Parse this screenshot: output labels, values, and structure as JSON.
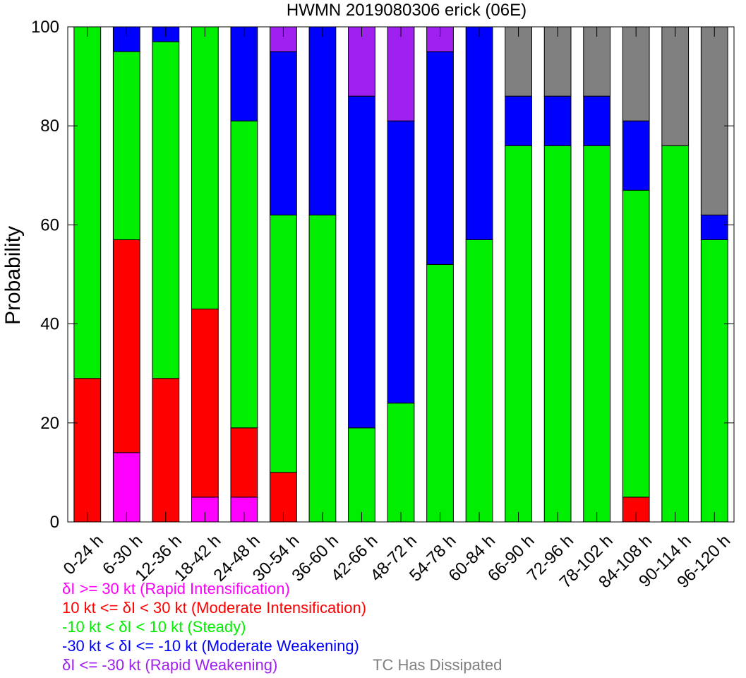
{
  "chart_data": {
    "type": "bar",
    "stacked": true,
    "title": "HWMN 2019080306 erick (06E)",
    "ylabel": "Probability",
    "xlabel": "",
    "ylim": [
      0,
      100
    ],
    "yticks": [
      0,
      20,
      40,
      60,
      80,
      100
    ],
    "grid": false,
    "categories": [
      "0-24 h",
      "6-30 h",
      "12-36 h",
      "18-42 h",
      "24-48 h",
      "30-54 h",
      "36-60 h",
      "42-66 h",
      "48-72 h",
      "54-78 h",
      "60-84 h",
      "66-90 h",
      "72-96 h",
      "78-102 h",
      "84-108 h",
      "90-114 h",
      "96-120 h"
    ],
    "series": [
      {
        "name": "δI >= 30 kt (Rapid Intensification)",
        "color": "#ff00ff",
        "values": [
          0,
          14,
          0,
          5,
          5,
          0,
          0,
          0,
          0,
          0,
          0,
          0,
          0,
          0,
          0,
          0,
          0
        ]
      },
      {
        "name": "10 kt <= δI < 30 kt (Moderate Intensification)",
        "color": "#ff0000",
        "values": [
          29,
          43,
          29,
          38,
          14,
          10,
          0,
          0,
          0,
          0,
          0,
          0,
          0,
          0,
          5,
          0,
          0
        ]
      },
      {
        "name": "-10 kt < δI < 10 kt (Steady)",
        "color": "#00ee00",
        "values": [
          71,
          38,
          68,
          57,
          62,
          52,
          62,
          19,
          24,
          52,
          57,
          76,
          76,
          76,
          62,
          76,
          57
        ]
      },
      {
        "name": "-30 kt < δI <= -10 kt (Moderate Weakening)",
        "color": "#0000ff",
        "values": [
          0,
          5,
          3,
          0,
          19,
          33,
          38,
          67,
          57,
          43,
          43,
          10,
          10,
          10,
          14,
          0,
          5
        ]
      },
      {
        "name": "δI <= -30 kt (Rapid Weakening)",
        "color": "#a020f0",
        "values": [
          0,
          0,
          0,
          0,
          0,
          5,
          0,
          14,
          19,
          5,
          0,
          0,
          0,
          0,
          0,
          0,
          0
        ]
      },
      {
        "name": "TC Has Dissipated",
        "color": "#808080",
        "values": [
          0,
          0,
          0,
          0,
          0,
          0,
          0,
          0,
          0,
          0,
          0,
          14,
          14,
          14,
          19,
          24,
          38
        ]
      }
    ],
    "legend": {
      "placement": "bottom-left",
      "entries": [
        {
          "text": "δI >= 30 kt (Rapid Intensification)",
          "color": "#ff00ff"
        },
        {
          "text": "10 kt <= δI < 30 kt (Moderate Intensification)",
          "color": "#ff0000"
        },
        {
          "text": "-10 kt < δI < 10 kt (Steady)",
          "color": "#00ee00"
        },
        {
          "text": "-30 kt < δI <= -10 kt (Moderate Weakening)",
          "color": "#0000ff"
        },
        {
          "text": "δI <= -30 kt (Rapid Weakening)",
          "color": "#a020f0"
        },
        {
          "text": "TC Has Dissipated",
          "color": "#808080"
        }
      ]
    }
  }
}
